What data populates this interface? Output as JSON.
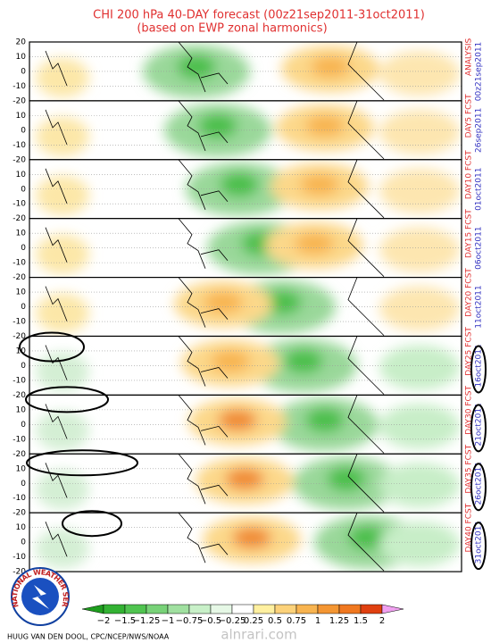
{
  "title": "CHI 200 hPa 40-DAY forecast (00z21sep2011-31oct2011)",
  "subtitle": "(based on EWP zonal harmonics)",
  "yticks": [
    20,
    10,
    0,
    -10,
    -20
  ],
  "panels": [
    {
      "label": "ANALYSIS",
      "date": "00z21sep2011"
    },
    {
      "label": "DAY5 FCST",
      "date": "26sep2011"
    },
    {
      "label": "DAY10 FCST",
      "date": "01oct2011"
    },
    {
      "label": "DAY15 FCST",
      "date": "06oct2011"
    },
    {
      "label": "DAY20 FCST",
      "date": "11oct2011"
    },
    {
      "label": "DAY25 FCST",
      "date": "16oct2011"
    },
    {
      "label": "DAY30 FCST",
      "date": "21oct2011"
    },
    {
      "label": "DAY35 FCST",
      "date": "26oct2011"
    },
    {
      "label": "DAY40 FCST",
      "date": "31oct2011"
    }
  ],
  "colorbar": {
    "labels": [
      "−2",
      "−1.5",
      "−1.25",
      "−1",
      "−0.75",
      "−0.5",
      "−0.25",
      "0.25",
      "0.5",
      "0.75",
      "1",
      "1.25",
      "1.5",
      "2"
    ],
    "colors": [
      "#1e9e1e",
      "#33b233",
      "#50c450",
      "#78d278",
      "#a0e0a0",
      "#c8f0c8",
      "#e6f8e6",
      "#ffffff",
      "#fff0a0",
      "#fcd27a",
      "#f8b450",
      "#f49632",
      "#f07820",
      "#e04010",
      "#f0a0f0"
    ]
  },
  "credit": "HUUG VAN DEN DOOL, CPC/NCEP/NWS/NOAA",
  "logo": "NATIONAL WEATHER SERVICE",
  "watermark": "alnrari.com"
}
